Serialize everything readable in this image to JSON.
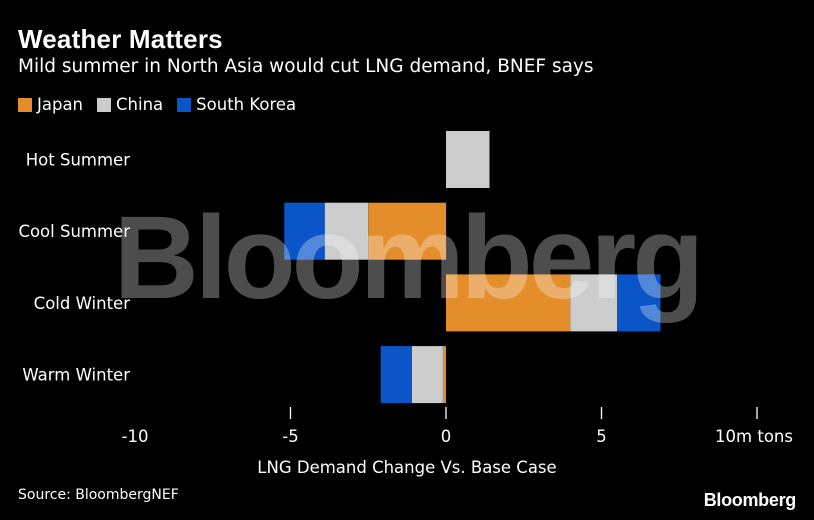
{
  "header": {
    "title": "Weather Matters",
    "subtitle": "Mild summer in North Asia would cut LNG demand, BNEF says"
  },
  "watermark": "Bloomberg",
  "footer": {
    "source": "Source: BloombergNEF",
    "brand": "Bloomberg"
  },
  "colors": {
    "Japan": "#e38d2b",
    "China": "#cccccc",
    "South Korea": "#0a55c8",
    "background": "#000000",
    "text": "#ffffff"
  },
  "chart_data": {
    "type": "bar",
    "orientation": "horizontal",
    "stacked": true,
    "title": "Weather Matters",
    "subtitle": "Mild summer in North Asia would cut LNG demand, BNEF says",
    "xlabel": "LNG Demand Change Vs. Base Case",
    "ylabel": "",
    "xlim": [
      -10,
      10
    ],
    "x_ticks": [
      -10,
      -5,
      0,
      5,
      10
    ],
    "x_tick_labels": [
      "-10",
      "-5",
      "0",
      "5",
      "10m tons"
    ],
    "categories": [
      "Hot Summer",
      "Cool Summer",
      "Cold Winter",
      "Warm Winter"
    ],
    "series": [
      {
        "name": "Japan",
        "values": [
          0,
          -2.5,
          4.0,
          -0.1
        ]
      },
      {
        "name": "China",
        "values": [
          1.4,
          -1.4,
          1.5,
          -1.0
        ]
      },
      {
        "name": "South Korea",
        "values": [
          0,
          -1.3,
          1.4,
          -1.0
        ]
      }
    ],
    "legend_position": "top-left",
    "grid": false
  }
}
